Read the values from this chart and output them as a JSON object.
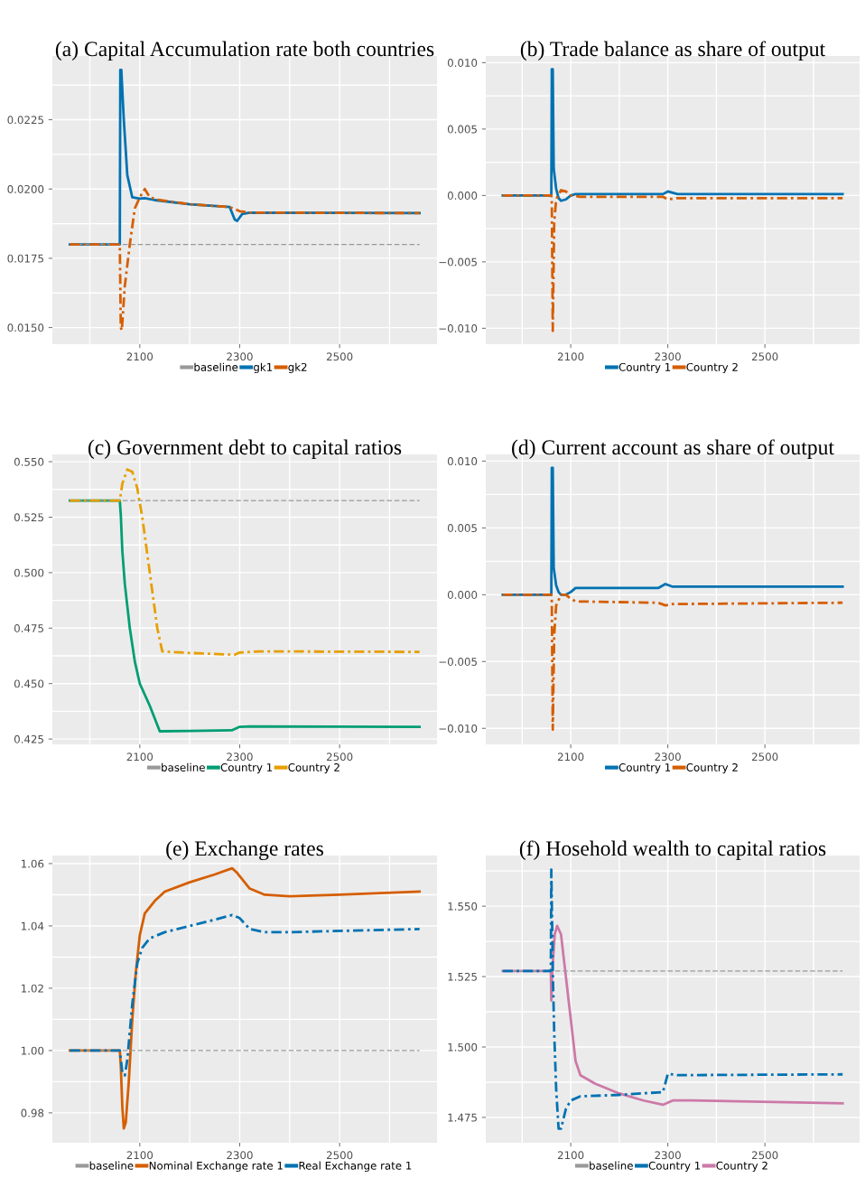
{
  "chart_data": [
    {
      "type": "line",
      "title": "(a) Capital Accumulation rate both countries",
      "xlim": [
        1925,
        2695
      ],
      "ylim": [
        0.0144,
        0.0248
      ],
      "grid": true,
      "legend": "bottom",
      "xticks": [
        {
          "value": 2000,
          "label": null
        },
        2100,
        {
          "value": 2200,
          "label": null
        },
        2300,
        {
          "value": 2400,
          "label": null
        },
        2500,
        {
          "value": 2600,
          "label": null
        }
      ],
      "yticks": [
        {
          "value": 0.015,
          "label": "0.0150"
        },
        {
          "value": 0.01625,
          "label": null
        },
        {
          "value": 0.0175,
          "label": "0.0175"
        },
        {
          "value": 0.01875,
          "label": null
        },
        {
          "value": 0.02,
          "label": "0.0200"
        },
        {
          "value": 0.02125,
          "label": null
        },
        {
          "value": 0.0225,
          "label": "0.0225"
        },
        {
          "value": 0.02375,
          "label": null
        }
      ],
      "series": [
        {
          "name": "baseline",
          "color": "#999999",
          "line_style": "dashed",
          "x": [
            1960,
            2660
          ],
          "values": [
            0.018,
            0.018
          ]
        },
        {
          "name": "gk1",
          "color": "#0072b2",
          "line_style": "solid",
          "x": [
            1960,
            2060,
            2061,
            2063,
            2068,
            2075,
            2085,
            2100,
            2110,
            2130,
            2200,
            2280,
            2290,
            2295,
            2305,
            2320,
            2660
          ],
          "values": [
            0.018,
            0.018,
            0.0243,
            0.0243,
            0.0225,
            0.0205,
            0.0197,
            0.01965,
            0.01967,
            0.0196,
            0.01945,
            0.01935,
            0.0189,
            0.01885,
            0.0191,
            0.01915,
            0.01913
          ]
        },
        {
          "name": "gk2",
          "color": "#d55e00",
          "line_style": "dashdot",
          "x": [
            1960,
            2060,
            2062,
            2064,
            2070,
            2080,
            2090,
            2100,
            2110,
            2120,
            2140,
            2200,
            2280,
            2300,
            2320,
            2660
          ],
          "values": [
            0.018,
            0.018,
            0.015,
            0.0149,
            0.0165,
            0.018,
            0.0193,
            0.0197,
            0.02,
            0.0197,
            0.0196,
            0.01945,
            0.01935,
            0.0192,
            0.01915,
            0.01913
          ]
        }
      ]
    },
    {
      "type": "line",
      "title": "(b) Trade balance as share of output",
      "xlim": [
        1925,
        2695
      ],
      "ylim": [
        -0.0112,
        0.0105
      ],
      "grid": true,
      "legend": "bottom",
      "xticks": [
        {
          "value": 2000,
          "label": null
        },
        2100,
        {
          "value": 2200,
          "label": null
        },
        2300,
        {
          "value": 2400,
          "label": null
        },
        2500,
        {
          "value": 2600,
          "label": null
        }
      ],
      "yticks": [
        {
          "value": -0.01,
          "label": "−0.010"
        },
        {
          "value": -0.0075,
          "label": null
        },
        {
          "value": -0.005,
          "label": "−0.005"
        },
        {
          "value": -0.0025,
          "label": null
        },
        {
          "value": 0,
          "label": "0.000"
        },
        {
          "value": 0.0025,
          "label": null
        },
        {
          "value": 0.005,
          "label": "0.005"
        },
        {
          "value": 0.0075,
          "label": null
        },
        {
          "value": 0.01,
          "label": "0.010"
        }
      ],
      "series": [
        {
          "name": "Country 1",
          "color": "#0072b2",
          "line_style": "solid",
          "x": [
            1960,
            2060,
            2061,
            2063,
            2065,
            2070,
            2075,
            2080,
            2090,
            2100,
            2110,
            2290,
            2300,
            2320,
            2660
          ],
          "values": [
            0,
            0,
            0.0095,
            0.0095,
            0.002,
            0.0005,
            -0.0002,
            -0.0004,
            -0.0003,
            0,
            0.0001,
            0.0001,
            0.0003,
            0.0001,
            0.0001
          ]
        },
        {
          "name": "Country 2",
          "color": "#d55e00",
          "line_style": "dashdot",
          "x": [
            1960,
            2060,
            2061,
            2063,
            2066,
            2070,
            2080,
            2090,
            2100,
            2120,
            2290,
            2300,
            2320,
            2660
          ],
          "values": [
            0,
            0,
            -0.0005,
            -0.0102,
            -0.002,
            -0.0003,
            0.0004,
            0.0003,
            0,
            -0.0001,
            -0.0001,
            -0.0003,
            -0.0002,
            -0.0002
          ]
        }
      ]
    },
    {
      "type": "line",
      "title": "(c) Government debt to capital ratios",
      "xlim": [
        1925,
        2695
      ],
      "ylim": [
        0.4226,
        0.5533
      ],
      "grid": true,
      "legend": "bottom",
      "xticks": [
        {
          "value": 2000,
          "label": null
        },
        2100,
        {
          "value": 2200,
          "label": null
        },
        2300,
        {
          "value": 2400,
          "label": null
        },
        2500,
        {
          "value": 2600,
          "label": null
        }
      ],
      "yticks": [
        {
          "value": 0.425,
          "label": "0.425"
        },
        {
          "value": 0.4375,
          "label": null
        },
        {
          "value": 0.45,
          "label": "0.450"
        },
        {
          "value": 0.4625,
          "label": null
        },
        {
          "value": 0.475,
          "label": "0.475"
        },
        {
          "value": 0.4875,
          "label": null
        },
        {
          "value": 0.5,
          "label": "0.500"
        },
        {
          "value": 0.5125,
          "label": null
        },
        {
          "value": 0.525,
          "label": "0.525"
        },
        {
          "value": 0.5375,
          "label": null
        },
        {
          "value": 0.55,
          "label": "0.550"
        }
      ],
      "series": [
        {
          "name": "baseline",
          "color": "#999999",
          "line_style": "dashed",
          "x": [
            1960,
            2660
          ],
          "values": [
            0.5325,
            0.5325
          ]
        },
        {
          "name": "Country 1",
          "color": "#009e73",
          "line_style": "solid",
          "x": [
            1960,
            2060,
            2062,
            2065,
            2070,
            2080,
            2090,
            2100,
            2120,
            2140,
            2200,
            2285,
            2300,
            2320,
            2660
          ],
          "values": [
            0.5325,
            0.5325,
            0.526,
            0.51,
            0.495,
            0.475,
            0.46,
            0.45,
            0.44,
            0.4285,
            0.4287,
            0.429,
            0.4305,
            0.4307,
            0.4305
          ]
        },
        {
          "name": "Country 2",
          "color": "#e69f00",
          "line_style": "dashdot",
          "x": [
            1960,
            2060,
            2065,
            2075,
            2085,
            2095,
            2105,
            2120,
            2135,
            2145,
            2200,
            2290,
            2300,
            2340,
            2660
          ],
          "values": [
            0.5325,
            0.5325,
            0.54,
            0.5465,
            0.5455,
            0.538,
            0.525,
            0.5,
            0.475,
            0.4645,
            0.4638,
            0.463,
            0.464,
            0.4645,
            0.4643
          ]
        }
      ]
    },
    {
      "type": "line",
      "title": "(d) Current account as share of output",
      "xlim": [
        1925,
        2695
      ],
      "ylim": [
        -0.0112,
        0.0105
      ],
      "grid": true,
      "legend": "bottom",
      "xticks": [
        {
          "value": 2000,
          "label": null
        },
        2100,
        {
          "value": 2200,
          "label": null
        },
        2300,
        {
          "value": 2400,
          "label": null
        },
        2500,
        {
          "value": 2600,
          "label": null
        }
      ],
      "yticks": [
        {
          "value": -0.01,
          "label": "−0.010"
        },
        {
          "value": -0.0075,
          "label": null
        },
        {
          "value": -0.005,
          "label": "−0.005"
        },
        {
          "value": -0.0025,
          "label": null
        },
        {
          "value": 0,
          "label": "0.000"
        },
        {
          "value": 0.0025,
          "label": null
        },
        {
          "value": 0.005,
          "label": "0.005"
        },
        {
          "value": 0.0075,
          "label": null
        },
        {
          "value": 0.01,
          "label": "0.010"
        }
      ],
      "series": [
        {
          "name": "Country 1",
          "color": "#0072b2",
          "line_style": "solid",
          "x": [
            1960,
            2060,
            2061,
            2063,
            2065,
            2070,
            2075,
            2080,
            2090,
            2100,
            2110,
            2120,
            2280,
            2295,
            2310,
            2660
          ],
          "values": [
            0,
            0,
            0.0095,
            0.0095,
            0.002,
            0.0007,
            0.0002,
            0,
            0,
            0.0002,
            0.0005,
            0.0005,
            0.0005,
            0.0008,
            0.0006,
            0.0006
          ]
        },
        {
          "name": "Country 2",
          "color": "#d55e00",
          "line_style": "dashdot",
          "x": [
            1960,
            2060,
            2061,
            2063,
            2066,
            2070,
            2080,
            2090,
            2100,
            2110,
            2280,
            2295,
            2310,
            2660
          ],
          "values": [
            0,
            0,
            -0.0005,
            -0.0101,
            -0.003,
            -0.0008,
            0,
            0,
            -0.0003,
            -0.0005,
            -0.0006,
            -0.0008,
            -0.0007,
            -0.0006
          ]
        }
      ]
    },
    {
      "type": "line",
      "title": "(e) Exchange rates",
      "xlim": [
        1925,
        2695
      ],
      "ylim": [
        0.9704,
        1.0626
      ],
      "grid": true,
      "legend": "bottom",
      "xticks": [
        {
          "value": 2000,
          "label": null
        },
        2100,
        {
          "value": 2200,
          "label": null
        },
        2300,
        {
          "value": 2400,
          "label": null
        },
        2500,
        {
          "value": 2600,
          "label": null
        }
      ],
      "yticks": [
        {
          "value": 0.98,
          "label": "0.98"
        },
        {
          "value": 0.99,
          "label": null
        },
        {
          "value": 1.0,
          "label": "1.00"
        },
        {
          "value": 1.01,
          "label": null
        },
        {
          "value": 1.02,
          "label": "1.02"
        },
        {
          "value": 1.03,
          "label": null
        },
        {
          "value": 1.04,
          "label": "1.04"
        },
        {
          "value": 1.05,
          "label": null
        },
        {
          "value": 1.06,
          "label": "1.06"
        }
      ],
      "series": [
        {
          "name": "baseline",
          "color": "#999999",
          "line_style": "dashed",
          "x": [
            1960,
            2660
          ],
          "values": [
            1.0,
            1.0
          ]
        },
        {
          "name": "Nominal Exchange rate 1",
          "color": "#d55e00",
          "line_style": "solid",
          "x": [
            1960,
            2060,
            2062,
            2065,
            2068,
            2072,
            2078,
            2085,
            2092,
            2100,
            2110,
            2130,
            2150,
            2200,
            2250,
            2285,
            2295,
            2320,
            2350,
            2400,
            2500,
            2660
          ],
          "values": [
            1.0,
            1.0,
            0.995,
            0.982,
            0.975,
            0.977,
            0.99,
            1.01,
            1.025,
            1.037,
            1.044,
            1.048,
            1.051,
            1.054,
            1.0565,
            1.0585,
            1.057,
            1.052,
            1.05,
            1.0495,
            1.05,
            1.051
          ]
        },
        {
          "name": "Real Exchange rate 1",
          "color": "#0072b2",
          "line_style": "dashdot",
          "x": [
            1960,
            2060,
            2065,
            2070,
            2075,
            2085,
            2095,
            2105,
            2120,
            2150,
            2200,
            2250,
            2285,
            2300,
            2320,
            2350,
            2400,
            2660
          ],
          "values": [
            1.0,
            1.0,
            0.993,
            0.992,
            0.997,
            1.015,
            1.028,
            1.033,
            1.036,
            1.038,
            1.04,
            1.042,
            1.0435,
            1.0425,
            1.039,
            1.038,
            1.038,
            1.039
          ]
        }
      ]
    },
    {
      "type": "line",
      "title": "(f) Hosehold wealth to capital ratios",
      "xlim": [
        1925,
        2695
      ],
      "ylim": [
        1.466,
        1.568
      ],
      "grid": true,
      "legend": "bottom",
      "xticks": [
        {
          "value": 2000,
          "label": null
        },
        2100,
        {
          "value": 2200,
          "label": null
        },
        2300,
        {
          "value": 2400,
          "label": null
        },
        2500,
        {
          "value": 2600,
          "label": null
        }
      ],
      "yticks": [
        {
          "value": 1.475,
          "label": "1.475"
        },
        {
          "value": 1.4875,
          "label": null
        },
        {
          "value": 1.5,
          "label": "1.500"
        },
        {
          "value": 1.5125,
          "label": null
        },
        {
          "value": 1.525,
          "label": "1.525"
        },
        {
          "value": 1.5375,
          "label": null
        },
        {
          "value": 1.55,
          "label": "1.550"
        },
        {
          "value": 1.5625,
          "label": null
        }
      ],
      "series": [
        {
          "name": "baseline",
          "color": "#999999",
          "line_style": "dashed",
          "x": [
            1960,
            2660
          ],
          "values": [
            1.527,
            1.527
          ]
        },
        {
          "name": "Country 1",
          "color": "#0072b2",
          "line_style": "dashdot",
          "x": [
            1960,
            2059,
            2060,
            2062,
            2063,
            2066,
            2070,
            2075,
            2080,
            2090,
            2100,
            2120,
            2200,
            2290,
            2300,
            2320,
            2660
          ],
          "values": [
            1.527,
            1.527,
            1.563,
            1.54,
            1.527,
            1.505,
            1.485,
            1.471,
            1.471,
            1.478,
            1.481,
            1.4825,
            1.483,
            1.484,
            1.4905,
            1.49,
            1.4903
          ]
        },
        {
          "name": "Country 2",
          "color": "#cc79a7",
          "line_style": "solid",
          "x": [
            1960,
            2059,
            2060,
            2062,
            2067,
            2072,
            2080,
            2090,
            2100,
            2110,
            2120,
            2150,
            2200,
            2250,
            2290,
            2310,
            2350,
            2660
          ],
          "values": [
            1.527,
            1.527,
            1.5165,
            1.527,
            1.54,
            1.543,
            1.54,
            1.525,
            1.51,
            1.495,
            1.49,
            1.487,
            1.4835,
            1.481,
            1.4795,
            1.481,
            1.481,
            1.48
          ]
        }
      ]
    }
  ]
}
